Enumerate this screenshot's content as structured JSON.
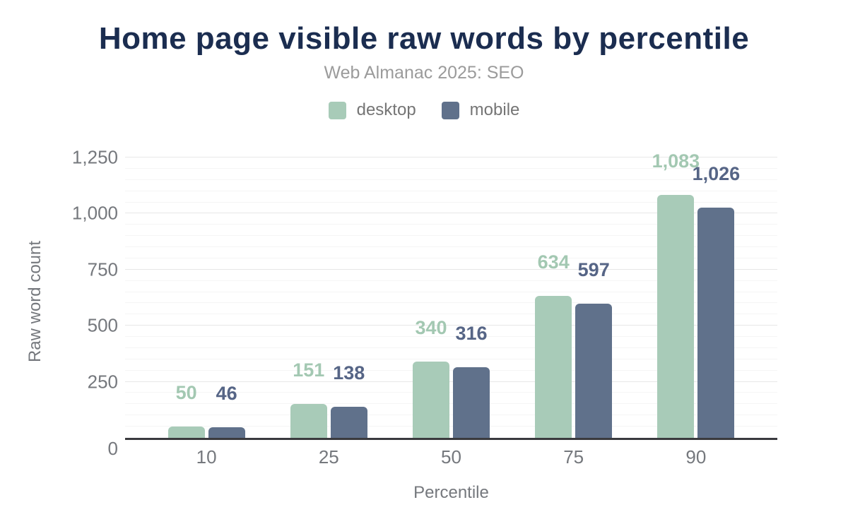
{
  "header": {
    "title": "Home page visible raw words by percentile",
    "subtitle": "Web Almanac 2025: SEO"
  },
  "legend": {
    "items": [
      {
        "label": "desktop",
        "color": "#a8cbb8"
      },
      {
        "label": "mobile",
        "color": "#60718b"
      }
    ]
  },
  "colors": {
    "title": "#1b2d50",
    "subtitle": "#9b9b9b",
    "legend_text": "#757575",
    "axis_text": "#75787d",
    "grid_major": "#e7e7e7",
    "grid_minor": "#f5f5f5",
    "axis_line": "#3a3a3e",
    "background": "#ffffff"
  },
  "chart_data": {
    "type": "bar",
    "title": "Home page visible raw words by percentile",
    "subtitle": "Web Almanac 2025: SEO",
    "categories": [
      "10",
      "25",
      "50",
      "75",
      "90"
    ],
    "series": [
      {
        "name": "desktop",
        "color": "#a8cbb8",
        "label_color": "#a3c8b2",
        "values": [
          50,
          151,
          340,
          634,
          1083
        ],
        "value_labels": [
          "50",
          "151",
          "340",
          "634",
          "1,083"
        ]
      },
      {
        "name": "mobile",
        "color": "#60718b",
        "label_color": "#566586",
        "values": [
          46,
          138,
          316,
          597,
          1026
        ],
        "value_labels": [
          "46",
          "138",
          "316",
          "597",
          "1,026"
        ]
      }
    ],
    "xlabel": "Percentile",
    "ylabel": "Raw word count",
    "ylim": [
      0,
      1250
    ],
    "ytick_step": 250,
    "minor_tick_step": 50,
    "ytick_labels": [
      "0",
      "250",
      "500",
      "750",
      "1,000",
      "1,250"
    ],
    "grid": true,
    "legend_position": "top"
  }
}
